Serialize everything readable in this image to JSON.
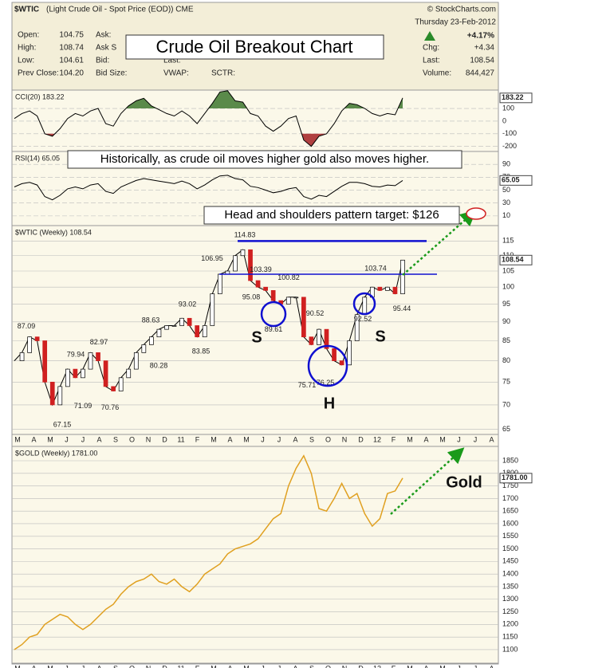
{
  "header": {
    "symbol": "$WTIC",
    "description": "(Light Crude Oil - Spot Price (EOD)) CME",
    "credit": "© StockCharts.com",
    "date": "Thursday 23-Feb-2012",
    "change_pct": "+4.17%",
    "columns": [
      [
        [
          "Open:",
          "104.75"
        ],
        [
          "High:",
          "108.74"
        ],
        [
          "Low:",
          "104.61"
        ],
        [
          "Prev Close:",
          "104.20"
        ]
      ],
      [
        [
          "Ask:",
          ""
        ],
        [
          "Ask S",
          ""
        ],
        [
          "Bid:",
          ""
        ],
        [
          "Bid Size:",
          ""
        ]
      ],
      [
        [
          "Last:",
          ""
        ],
        [
          "VWAP:",
          ""
        ]
      ],
      [
        [
          "SCTR:",
          ""
        ]
      ]
    ],
    "right": [
      [
        "Chg:",
        "+4.34"
      ],
      [
        "Last:",
        "108.54"
      ],
      [
        "Volume:",
        "844,427"
      ]
    ]
  },
  "annotations": {
    "title": "Crude Oil Breakout Chart",
    "gold_note": "Historically, as crude oil moves higher gold also moves higher.",
    "target": "Head and shoulders pattern target: $126",
    "left_shoulder": "S",
    "right_shoulder": "S",
    "head": "H",
    "gold": "Gold"
  },
  "chart_data": [
    {
      "type": "line",
      "title": "CCI(20) 183.22",
      "color": "#000000",
      "ylim": [
        -240,
        245
      ],
      "yticks": [
        100,
        0,
        -100,
        -200
      ],
      "values": [
        20,
        60,
        80,
        40,
        -100,
        -120,
        -60,
        20,
        60,
        40,
        80,
        100,
        -20,
        -40,
        60,
        120,
        160,
        180,
        120,
        90,
        60,
        40,
        80,
        40,
        -20,
        60,
        140,
        230,
        240,
        160,
        150,
        60,
        40,
        -40,
        -80,
        -40,
        20,
        40,
        -150,
        -200,
        -120,
        -100,
        -20,
        80,
        140,
        130,
        100,
        60,
        40,
        60,
        50,
        183.22
      ]
    },
    {
      "type": "line",
      "title": "RSI(14) 65.05",
      "color": "#000000",
      "ylim": [
        -5,
        110
      ],
      "yticks": [
        90,
        70,
        50,
        30,
        10
      ],
      "values": [
        55,
        60,
        62,
        58,
        40,
        35,
        42,
        52,
        55,
        52,
        58,
        60,
        48,
        45,
        55,
        60,
        65,
        68,
        66,
        64,
        62,
        60,
        64,
        60,
        52,
        58,
        66,
        72,
        73,
        68,
        66,
        56,
        54,
        50,
        46,
        48,
        52,
        54,
        40,
        36,
        42,
        40,
        48,
        56,
        62,
        62,
        60,
        56,
        55,
        58,
        57,
        65.05
      ]
    },
    {
      "type": "line",
      "title": "$WTIC (Weekly) 108.54",
      "color": "#000000",
      "log_scale": true,
      "ylim": [
        64,
        120.5
      ],
      "yticks": [
        115,
        110,
        105,
        100,
        95,
        90,
        85,
        80,
        75,
        70,
        65
      ],
      "values": [
        80,
        82,
        86,
        85,
        75,
        70,
        74,
        78,
        76,
        78,
        82,
        80,
        74,
        73,
        76,
        78,
        82,
        84,
        86,
        88,
        89,
        89,
        91,
        89,
        86,
        89,
        98,
        104,
        105,
        110,
        112,
        102,
        100,
        99,
        96,
        95,
        97,
        97,
        86,
        84,
        88,
        83,
        80,
        79,
        85,
        92,
        97,
        100,
        99,
        100,
        98,
        108.54
      ],
      "price_labels": [
        87.09,
        79.94,
        82.97,
        71.09,
        67.15,
        70.76,
        88.63,
        80.28,
        93.02,
        83.85,
        106.95,
        114.83,
        103.39,
        100.82,
        95.08,
        89.61,
        90.52,
        75.71,
        76.25,
        103.74,
        92.52,
        95.44
      ],
      "x_labels": [
        "M",
        "A",
        "M",
        "J",
        "J",
        "A",
        "S",
        "O",
        "N",
        "D",
        "11",
        "F",
        "M",
        "A",
        "M",
        "J",
        "J",
        "A",
        "S",
        "O",
        "N",
        "D",
        "12",
        "F",
        "M",
        "A",
        "M",
        "J",
        "J",
        "A"
      ]
    },
    {
      "type": "line",
      "title": "$GOLD (Weekly) 1781.00",
      "color": "#e0a020",
      "ylim": [
        1046,
        1907
      ],
      "last_label": "1781.00",
      "yticks": [
        1850,
        1800,
        1750,
        1700,
        1650,
        1600,
        1550,
        1500,
        1450,
        1400,
        1350,
        1300,
        1250,
        1200,
        1150,
        1100
      ],
      "values": [
        1100,
        1120,
        1150,
        1160,
        1200,
        1220,
        1240,
        1230,
        1200,
        1180,
        1200,
        1230,
        1260,
        1280,
        1320,
        1350,
        1370,
        1380,
        1400,
        1370,
        1360,
        1380,
        1350,
        1330,
        1360,
        1400,
        1420,
        1440,
        1480,
        1500,
        1510,
        1520,
        1540,
        1580,
        1620,
        1640,
        1750,
        1820,
        1870,
        1800,
        1660,
        1650,
        1700,
        1760,
        1700,
        1720,
        1640,
        1590,
        1620,
        1720,
        1730,
        1781
      ],
      "x_labels": [
        "M",
        "A",
        "M",
        "J",
        "J",
        "A",
        "S",
        "O",
        "N",
        "D",
        "11",
        "F",
        "M",
        "A",
        "M",
        "J",
        "J",
        "A",
        "S",
        "O",
        "N",
        "D",
        "12",
        "F",
        "M",
        "A",
        "M",
        "J",
        "J",
        "A"
      ]
    }
  ]
}
